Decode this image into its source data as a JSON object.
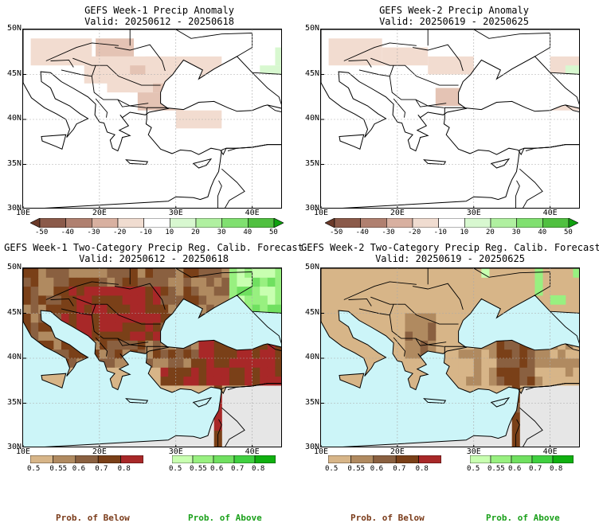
{
  "panels": [
    {
      "title": "GEFS Week-1 Precip Anomaly",
      "valid": "Valid: 20250612 - 20250618"
    },
    {
      "title": "GEFS Week-2 Precip Anomaly",
      "valid": "Valid: 20250619 - 20250625"
    },
    {
      "title": "GEFS Week-1 Two-Category Precip Reg. Calib. Forecast",
      "valid": "Valid: 20250612 - 20250618"
    },
    {
      "title": "GEFS Week-2 Two-Category Precip Reg. Calib. Forecast",
      "valid": "Valid: 20250619 - 20250625"
    }
  ],
  "lat_labels": [
    "50N",
    "45N",
    "40N",
    "35N",
    "30N"
  ],
  "lon_labels": [
    "10E",
    "20E",
    "30E",
    "40E"
  ],
  "anomaly_ticks": [
    "-50",
    "-40",
    "-30",
    "-20",
    "-10",
    "10",
    "20",
    "30",
    "40",
    "50"
  ],
  "anomaly_colors": [
    "#6b3a2a",
    "#8b5a4a",
    "#b08070",
    "#d8b0a0",
    "#f0dcd0",
    "#ffffff",
    "#d8f8d0",
    "#b0f0a0",
    "#80e070",
    "#50c040",
    "#10a010"
  ],
  "below_ticks": [
    "0.5",
    "0.55",
    "0.6",
    "0.7",
    "0.8"
  ],
  "above_ticks": [
    "0.5",
    "0.55",
    "0.6",
    "0.7",
    "0.8"
  ],
  "below_colors": [
    "#d7b588",
    "#b08a60",
    "#8a6040",
    "#7a4018",
    "#a82828"
  ],
  "above_colors": [
    "#c8ffb0",
    "#98f080",
    "#70e060",
    "#40d040",
    "#10b010"
  ],
  "legend": {
    "below": "Prob. of Below",
    "above": "Prob. of Above"
  },
  "colors": {
    "sea": "#ccf5f8",
    "land_grey": "#e6e6e6",
    "tan": "#d7b588",
    "grid": "#aaaaaa"
  }
}
